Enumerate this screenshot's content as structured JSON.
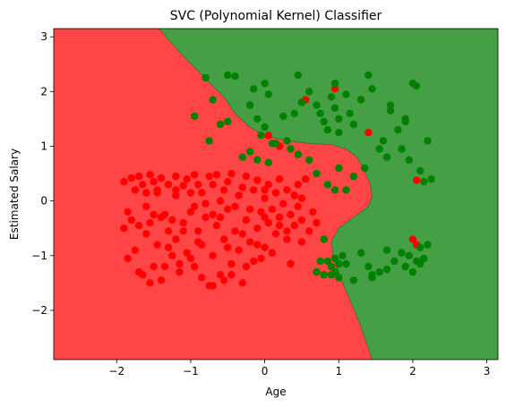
{
  "chart_data": {
    "type": "scatter",
    "title": "SVC (Polynomial Kernel) Classifier",
    "xlabel": "Age",
    "ylabel": "Estimated Salary",
    "xlim": [
      -2.85,
      3.15
    ],
    "ylim": [
      -2.9,
      3.15
    ],
    "xticks": [
      -2,
      -1,
      0,
      1,
      2,
      3
    ],
    "yticks": [
      -2,
      -1,
      0,
      1,
      2,
      3
    ],
    "tick_labels_x": [
      "−2",
      "−1",
      "0",
      "1",
      "2",
      "3"
    ],
    "tick_labels_y": [
      "−2",
      "−1",
      "0",
      "1",
      "2",
      "3"
    ],
    "grid": false,
    "colors": {
      "region_0": "#ff4545",
      "region_1": "#45a045",
      "class_0": "#ff0000",
      "class_1": "#008000"
    },
    "decision_boundary": [
      [
        -1.43,
        3.15
      ],
      [
        -1.3,
        2.95
      ],
      [
        -1.1,
        2.65
      ],
      [
        -0.9,
        2.38
      ],
      [
        -0.7,
        2.1
      ],
      [
        -0.55,
        1.9
      ],
      [
        -0.4,
        1.6
      ],
      [
        -0.2,
        1.35
      ],
      [
        0.0,
        1.2
      ],
      [
        0.3,
        1.1
      ],
      [
        0.6,
        1.05
      ],
      [
        0.9,
        1.03
      ],
      [
        1.1,
        0.95
      ],
      [
        1.25,
        0.8
      ],
      [
        1.35,
        0.55
      ],
      [
        1.43,
        0.3
      ],
      [
        1.45,
        0.08
      ],
      [
        1.4,
        -0.1
      ],
      [
        1.2,
        -0.3
      ],
      [
        1.0,
        -0.5
      ],
      [
        0.9,
        -0.75
      ],
      [
        0.93,
        -1.05
      ],
      [
        1.02,
        -1.4
      ],
      [
        1.15,
        -1.8
      ],
      [
        1.3,
        -2.3
      ],
      [
        1.45,
        -2.9
      ]
    ],
    "series": [
      {
        "class": 0,
        "points": [
          [
            -1.9,
            0.35
          ],
          [
            -1.8,
            0.42
          ],
          [
            -1.75,
            0.2
          ],
          [
            -1.7,
            0.45
          ],
          [
            -1.65,
            0.3
          ],
          [
            -1.6,
            0.15
          ],
          [
            -1.55,
            0.48
          ],
          [
            -1.5,
            0.35
          ],
          [
            -1.45,
            0.2
          ],
          [
            -1.4,
            0.42
          ],
          [
            -1.3,
            0.3
          ],
          [
            -1.2,
            0.45
          ],
          [
            -1.1,
            0.28
          ],
          [
            -1.05,
            0.4
          ],
          [
            -0.95,
            0.48
          ],
          [
            -0.9,
            0.3
          ],
          [
            -0.85,
            0.15
          ],
          [
            -0.75,
            0.45
          ],
          [
            -0.7,
            0.3
          ],
          [
            -0.65,
            0.48
          ],
          [
            -0.55,
            0.2
          ],
          [
            -0.5,
            0.35
          ],
          [
            -0.45,
            0.5
          ],
          [
            -0.35,
            0.1
          ],
          [
            -0.3,
            0.25
          ],
          [
            -0.25,
            0.45
          ],
          [
            -0.15,
            0.2
          ],
          [
            -0.1,
            0.38
          ],
          [
            0.0,
            0.05
          ],
          [
            0.05,
            0.3
          ],
          [
            0.15,
            0.15
          ],
          [
            0.2,
            0.4
          ],
          [
            0.3,
            0.2
          ],
          [
            0.4,
            0.1
          ],
          [
            0.45,
            0.3
          ],
          [
            -1.45,
            0.15
          ],
          [
            -1.2,
            0.2
          ],
          [
            -1.0,
            0.15
          ],
          [
            -1.9,
            -0.5
          ],
          [
            -1.85,
            -0.2
          ],
          [
            -1.8,
            -0.35
          ],
          [
            -1.75,
            -0.9
          ],
          [
            -1.7,
            -1.3
          ],
          [
            -1.6,
            -0.6
          ],
          [
            -1.55,
            -0.4
          ],
          [
            -1.5,
            -1.2
          ],
          [
            -1.45,
            -0.8
          ],
          [
            -1.4,
            -1.45
          ],
          [
            -1.35,
            -0.25
          ],
          [
            -1.3,
            -0.55
          ],
          [
            -1.25,
            -1.0
          ],
          [
            -1.2,
            -0.7
          ],
          [
            -1.15,
            -1.3
          ],
          [
            -1.1,
            -0.4
          ],
          [
            -1.05,
            -0.95
          ],
          [
            -1.0,
            -0.2
          ],
          [
            -0.95,
            -1.2
          ],
          [
            -0.9,
            -0.55
          ],
          [
            -0.85,
            -0.8
          ],
          [
            -0.8,
            -0.3
          ],
          [
            -0.75,
            -1.55
          ],
          [
            -0.7,
            -1.0
          ],
          [
            -0.65,
            -0.45
          ],
          [
            -0.6,
            -1.35
          ],
          [
            -0.55,
            -0.7
          ],
          [
            -0.5,
            -0.15
          ],
          [
            -0.45,
            -1.15
          ],
          [
            -0.4,
            -0.55
          ],
          [
            -0.35,
            -0.9
          ],
          [
            -0.3,
            -1.5
          ],
          [
            -0.25,
            -0.35
          ],
          [
            -0.2,
            -0.75
          ],
          [
            -0.15,
            -1.1
          ],
          [
            -0.1,
            -0.5
          ],
          [
            -0.05,
            -0.2
          ],
          [
            0.0,
            -0.85
          ],
          [
            0.05,
            -0.4
          ],
          [
            0.1,
            -0.15
          ],
          [
            0.15,
            -0.6
          ],
          [
            0.2,
            -0.3
          ],
          [
            0.25,
            -0.05
          ],
          [
            0.3,
            -0.55
          ],
          [
            0.35,
            -0.25
          ],
          [
            0.4,
            -0.45
          ],
          [
            0.45,
            -0.1
          ],
          [
            0.5,
            -0.35
          ],
          [
            -1.85,
            -1.05
          ],
          [
            -1.65,
            -1.35
          ],
          [
            -1.55,
            -1.5
          ],
          [
            -1.35,
            -1.2
          ],
          [
            -1.15,
            -1.15
          ],
          [
            -1.0,
            -1.05
          ],
          [
            -0.85,
            -1.4
          ],
          [
            -0.7,
            -1.55
          ],
          [
            -0.55,
            -1.45
          ],
          [
            -0.45,
            -1.35
          ],
          [
            -0.25,
            -1.2
          ],
          [
            -0.05,
            -1.05
          ],
          [
            0.1,
            -0.95
          ],
          [
            0.35,
            -1.15
          ],
          [
            0.5,
            -0.75
          ],
          [
            0.6,
            -0.55
          ],
          [
            0.65,
            -0.2
          ],
          [
            0.7,
            -0.4
          ],
          [
            -1.6,
            -0.1
          ],
          [
            -1.4,
            -0.3
          ],
          [
            -1.25,
            -0.35
          ],
          [
            -0.95,
            -0.1
          ],
          [
            -0.8,
            -0.05
          ],
          [
            -0.6,
            -0.3
          ],
          [
            -0.4,
            -0.1
          ],
          [
            -0.2,
            -0.15
          ],
          [
            0.0,
            -0.3
          ],
          [
            0.2,
            -0.45
          ],
          [
            0.3,
            -0.7
          ],
          [
            -0.1,
            -0.8
          ],
          [
            -0.3,
            -0.6
          ],
          [
            -0.5,
            -0.85
          ],
          [
            -0.7,
            -0.25
          ],
          [
            -0.9,
            -0.75
          ],
          [
            -1.1,
            -0.55
          ],
          [
            -1.3,
            -0.85
          ],
          [
            -1.5,
            -0.25
          ],
          [
            -1.7,
            -0.45
          ],
          [
            -1.2,
            0.1
          ],
          [
            -0.6,
            0.0
          ],
          [
            0.0,
            0.2
          ],
          [
            0.5,
            0.05
          ],
          [
            0.55,
            0.4
          ],
          [
            0.55,
            1.85
          ],
          [
            0.05,
            1.2
          ],
          [
            0.2,
            1.0
          ],
          [
            0.95,
            2.05
          ],
          [
            1.3,
            1.85
          ],
          [
            1.4,
            1.25
          ],
          [
            2.05,
            0.38
          ],
          [
            2.0,
            -0.7
          ],
          [
            2.05,
            -0.8
          ]
        ]
      },
      {
        "class": 1,
        "points": [
          [
            -0.8,
            2.25
          ],
          [
            -0.7,
            1.85
          ],
          [
            -0.5,
            2.3
          ],
          [
            -0.4,
            2.28
          ],
          [
            -0.2,
            1.75
          ],
          [
            -0.15,
            2.05
          ],
          [
            -0.1,
            1.5
          ],
          [
            -0.05,
            1.2
          ],
          [
            0.0,
            1.35
          ],
          [
            0.05,
            1.95
          ],
          [
            0.0,
            2.15
          ],
          [
            0.15,
            1.05
          ],
          [
            0.25,
            1.55
          ],
          [
            0.3,
            1.1
          ],
          [
            0.4,
            1.6
          ],
          [
            0.45,
            2.3
          ],
          [
            0.5,
            1.8
          ],
          [
            0.6,
            2.0
          ],
          [
            0.7,
            1.75
          ],
          [
            0.75,
            1.6
          ],
          [
            0.8,
            1.45
          ],
          [
            0.85,
            1.3
          ],
          [
            0.9,
            1.9
          ],
          [
            0.95,
            1.7
          ],
          [
            1.0,
            1.5
          ],
          [
            1.0,
            1.25
          ],
          [
            0.95,
            2.15
          ],
          [
            1.1,
            1.95
          ],
          [
            1.15,
            1.6
          ],
          [
            1.2,
            1.4
          ],
          [
            1.3,
            1.85
          ],
          [
            1.4,
            2.3
          ],
          [
            1.45,
            2.05
          ],
          [
            1.55,
            0.95
          ],
          [
            1.6,
            1.1
          ],
          [
            1.65,
            0.8
          ],
          [
            1.7,
            1.65
          ],
          [
            1.8,
            1.3
          ],
          [
            1.85,
            0.95
          ],
          [
            1.9,
            1.5
          ],
          [
            1.95,
            0.75
          ],
          [
            2.0,
            2.15
          ],
          [
            2.05,
            2.1
          ],
          [
            2.1,
            0.55
          ],
          [
            2.15,
            0.35
          ],
          [
            2.2,
            1.1
          ],
          [
            2.25,
            0.4
          ],
          [
            1.7,
            1.75
          ],
          [
            1.9,
            1.45
          ],
          [
            -0.95,
            1.55
          ],
          [
            -0.75,
            1.1
          ],
          [
            -0.6,
            1.4
          ],
          [
            -0.5,
            1.45
          ],
          [
            -0.3,
            0.8
          ],
          [
            -0.2,
            0.9
          ],
          [
            -0.1,
            0.75
          ],
          [
            0.05,
            0.7
          ],
          [
            0.1,
            1.05
          ],
          [
            0.35,
            0.95
          ],
          [
            0.45,
            0.85
          ],
          [
            0.6,
            0.75
          ],
          [
            0.7,
            0.5
          ],
          [
            0.85,
            0.3
          ],
          [
            0.95,
            0.2
          ],
          [
            1.0,
            0.6
          ],
          [
            1.1,
            0.2
          ],
          [
            1.2,
            0.45
          ],
          [
            1.35,
            0.6
          ],
          [
            0.8,
            -0.7
          ],
          [
            0.85,
            -1.1
          ],
          [
            0.9,
            -1.2
          ],
          [
            0.95,
            -1.3
          ],
          [
            1.0,
            -1.4
          ],
          [
            0.75,
            -1.1
          ],
          [
            0.8,
            -1.35
          ],
          [
            1.05,
            -1.0
          ],
          [
            1.1,
            -1.15
          ],
          [
            1.2,
            -1.45
          ],
          [
            1.3,
            -0.95
          ],
          [
            1.4,
            -1.2
          ],
          [
            1.45,
            -1.4
          ],
          [
            1.55,
            -1.3
          ],
          [
            1.65,
            -0.9
          ],
          [
            1.75,
            -1.1
          ],
          [
            1.85,
            -0.95
          ],
          [
            1.9,
            -1.2
          ],
          [
            1.95,
            -1.0
          ],
          [
            2.0,
            -1.3
          ],
          [
            2.05,
            -1.1
          ],
          [
            2.1,
            -0.85
          ],
          [
            2.15,
            -1.05
          ],
          [
            2.2,
            -0.8
          ],
          [
            0.7,
            -1.3
          ],
          [
            0.95,
            -1.05
          ],
          [
            0.9,
            -1.35
          ],
          [
            1.0,
            -1.15
          ],
          [
            1.45,
            -1.35
          ],
          [
            1.65,
            -1.25
          ],
          [
            2.1,
            -1.15
          ]
        ]
      }
    ]
  }
}
